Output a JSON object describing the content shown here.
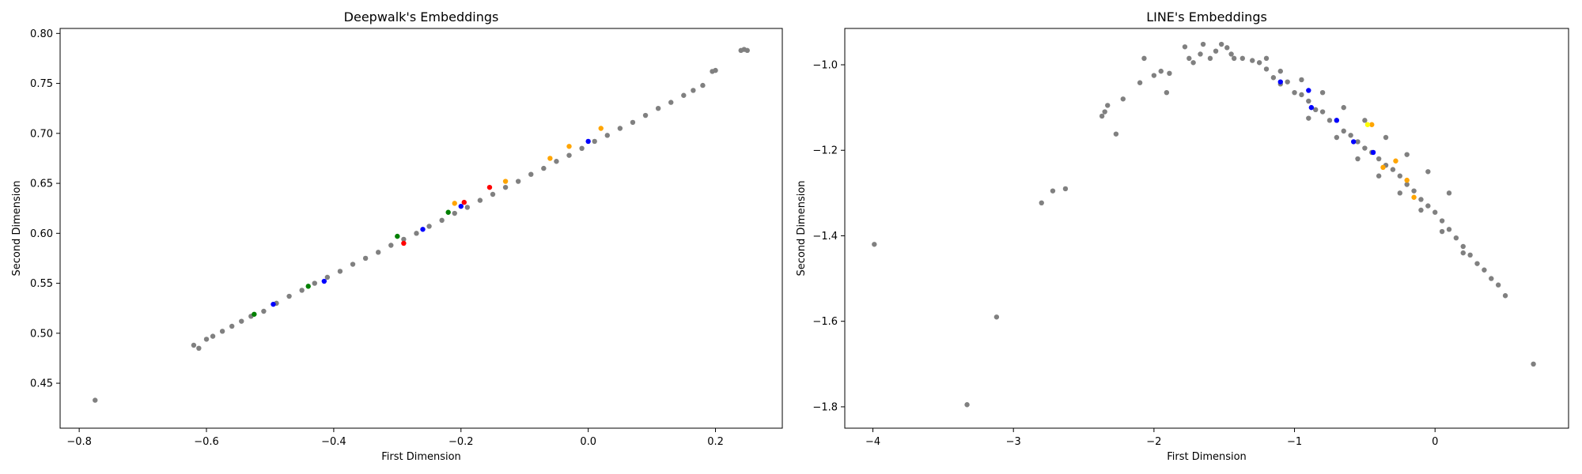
{
  "chart_data": [
    {
      "type": "scatter",
      "title": "Deepwalk's Embeddings",
      "xlabel": "First Dimension",
      "ylabel": "Second Dimension",
      "xlim": [
        -0.83,
        0.305
      ],
      "ylim": [
        0.405,
        0.805
      ],
      "xticks": [
        "−0.8",
        "−0.6",
        "−0.4",
        "−0.2",
        "0.0",
        "0.2"
      ],
      "xtick_values": [
        -0.8,
        -0.6,
        -0.4,
        -0.2,
        0.0,
        0.2
      ],
      "yticks": [
        "0.45",
        "0.50",
        "0.55",
        "0.60",
        "0.65",
        "0.70",
        "0.75",
        "0.80"
      ],
      "ytick_values": [
        0.45,
        0.5,
        0.55,
        0.6,
        0.65,
        0.7,
        0.75,
        0.8
      ],
      "grid": false,
      "series": [
        {
          "color": "#808080",
          "points": [
            [
              -0.775,
              0.433
            ],
            [
              -0.62,
              0.488
            ],
            [
              -0.612,
              0.485
            ],
            [
              -0.6,
              0.494
            ],
            [
              -0.59,
              0.497
            ],
            [
              -0.575,
              0.502
            ],
            [
              -0.56,
              0.507
            ],
            [
              -0.545,
              0.512
            ],
            [
              -0.53,
              0.517
            ],
            [
              -0.51,
              0.522
            ],
            [
              -0.49,
              0.53
            ],
            [
              -0.47,
              0.537
            ],
            [
              -0.45,
              0.543
            ],
            [
              -0.43,
              0.55
            ],
            [
              -0.41,
              0.556
            ],
            [
              -0.39,
              0.562
            ],
            [
              -0.37,
              0.569
            ],
            [
              -0.35,
              0.575
            ],
            [
              -0.33,
              0.581
            ],
            [
              -0.31,
              0.588
            ],
            [
              -0.29,
              0.594
            ],
            [
              -0.27,
              0.6
            ],
            [
              -0.25,
              0.607
            ],
            [
              -0.23,
              0.613
            ],
            [
              -0.21,
              0.62
            ],
            [
              -0.19,
              0.626
            ],
            [
              -0.17,
              0.633
            ],
            [
              -0.15,
              0.639
            ],
            [
              -0.13,
              0.646
            ],
            [
              -0.11,
              0.652
            ],
            [
              -0.09,
              0.659
            ],
            [
              -0.07,
              0.665
            ],
            [
              -0.05,
              0.672
            ],
            [
              -0.03,
              0.678
            ],
            [
              -0.01,
              0.685
            ],
            [
              0.01,
              0.692
            ],
            [
              0.03,
              0.698
            ],
            [
              0.05,
              0.705
            ],
            [
              0.07,
              0.711
            ],
            [
              0.09,
              0.718
            ],
            [
              0.11,
              0.725
            ],
            [
              0.13,
              0.731
            ],
            [
              0.15,
              0.738
            ],
            [
              0.165,
              0.743
            ],
            [
              0.18,
              0.748
            ],
            [
              0.195,
              0.762
            ],
            [
              0.2,
              0.763
            ],
            [
              0.24,
              0.783
            ],
            [
              0.245,
              0.784
            ],
            [
              0.25,
              0.783
            ]
          ]
        },
        {
          "color": "#ffa500",
          "points": [
            [
              -0.06,
              0.675
            ],
            [
              -0.03,
              0.687
            ],
            [
              0.02,
              0.705
            ],
            [
              -0.13,
              0.652
            ],
            [
              -0.21,
              0.63
            ]
          ]
        },
        {
          "color": "#0000ff",
          "points": [
            [
              -0.495,
              0.529
            ],
            [
              -0.415,
              0.552
            ],
            [
              -0.26,
              0.604
            ],
            [
              -0.2,
              0.627
            ],
            [
              0.0,
              0.692
            ]
          ]
        },
        {
          "color": "#ff0000",
          "points": [
            [
              -0.29,
              0.59
            ],
            [
              -0.155,
              0.646
            ],
            [
              -0.195,
              0.631
            ]
          ]
        },
        {
          "color": "#008000",
          "points": [
            [
              -0.525,
              0.519
            ],
            [
              -0.3,
              0.597
            ],
            [
              -0.22,
              0.621
            ],
            [
              -0.44,
              0.547
            ]
          ]
        }
      ]
    },
    {
      "type": "scatter",
      "title": "LINE's Embeddings",
      "xlabel": "First Dimension",
      "ylabel": "Second Dimension",
      "xlim": [
        -4.2,
        0.95
      ],
      "ylim": [
        -1.85,
        -0.915
      ],
      "xticks": [
        "−4",
        "−3",
        "−2",
        "−1",
        "0"
      ],
      "xtick_values": [
        -4,
        -3,
        -2,
        -1,
        0
      ],
      "yticks": [
        "−1.8",
        "−1.6",
        "−1.4",
        "−1.2",
        "−1.0"
      ],
      "ytick_values": [
        -1.8,
        -1.6,
        -1.4,
        -1.2,
        -1.0
      ],
      "grid": false,
      "series": [
        {
          "color": "#808080",
          "points": [
            [
              -3.99,
              -1.42
            ],
            [
              -3.33,
              -1.795
            ],
            [
              -3.12,
              -1.59
            ],
            [
              -2.8,
              -1.323
            ],
            [
              -2.72,
              -1.295
            ],
            [
              -2.63,
              -1.29
            ],
            [
              -2.37,
              -1.12
            ],
            [
              -2.33,
              -1.095
            ],
            [
              -2.35,
              -1.11
            ],
            [
              -2.27,
              -1.162
            ],
            [
              -2.22,
              -1.08
            ],
            [
              -2.1,
              -1.042
            ],
            [
              -2.07,
              -0.985
            ],
            [
              -2.0,
              -1.025
            ],
            [
              -1.95,
              -1.015
            ],
            [
              -1.91,
              -1.065
            ],
            [
              -1.89,
              -1.02
            ],
            [
              -1.78,
              -0.958
            ],
            [
              -1.75,
              -0.985
            ],
            [
              -1.72,
              -0.995
            ],
            [
              -1.67,
              -0.975
            ],
            [
              -1.65,
              -0.952
            ],
            [
              -1.6,
              -0.985
            ],
            [
              -1.56,
              -0.968
            ],
            [
              -1.52,
              -0.952
            ],
            [
              -1.48,
              -0.96
            ],
            [
              -1.45,
              -0.975
            ],
            [
              -1.43,
              -0.985
            ],
            [
              -1.37,
              -0.985
            ],
            [
              -1.3,
              -0.99
            ],
            [
              -1.25,
              -0.995
            ],
            [
              -1.2,
              -1.01
            ],
            [
              -1.15,
              -1.03
            ],
            [
              -1.1,
              -1.045
            ],
            [
              -1.05,
              -1.04
            ],
            [
              -1.0,
              -1.065
            ],
            [
              -0.95,
              -1.07
            ],
            [
              -0.9,
              -1.085
            ],
            [
              -0.85,
              -1.105
            ],
            [
              -0.8,
              -1.11
            ],
            [
              -0.75,
              -1.13
            ],
            [
              -0.7,
              -1.13
            ],
            [
              -0.65,
              -1.155
            ],
            [
              -0.6,
              -1.165
            ],
            [
              -0.55,
              -1.18
            ],
            [
              -0.5,
              -1.195
            ],
            [
              -0.45,
              -1.205
            ],
            [
              -0.4,
              -1.22
            ],
            [
              -0.35,
              -1.235
            ],
            [
              -0.3,
              -1.245
            ],
            [
              -0.25,
              -1.26
            ],
            [
              -0.2,
              -1.28
            ],
            [
              -0.15,
              -1.295
            ],
            [
              -0.1,
              -1.315
            ],
            [
              -0.05,
              -1.33
            ],
            [
              0.0,
              -1.345
            ],
            [
              0.05,
              -1.365
            ],
            [
              0.1,
              -1.385
            ],
            [
              0.15,
              -1.405
            ],
            [
              0.2,
              -1.425
            ],
            [
              0.25,
              -1.445
            ],
            [
              0.3,
              -1.465
            ],
            [
              0.35,
              -1.48
            ],
            [
              0.4,
              -1.5
            ],
            [
              0.45,
              -1.515
            ],
            [
              0.5,
              -1.54
            ],
            [
              0.7,
              -1.7
            ],
            [
              -1.2,
              -0.985
            ],
            [
              -1.1,
              -1.015
            ],
            [
              -0.95,
              -1.035
            ],
            [
              -0.8,
              -1.065
            ],
            [
              -0.65,
              -1.1
            ],
            [
              -0.5,
              -1.13
            ],
            [
              -0.35,
              -1.17
            ],
            [
              -0.2,
              -1.21
            ],
            [
              -0.05,
              -1.25
            ],
            [
              0.1,
              -1.3
            ],
            [
              -0.9,
              -1.125
            ],
            [
              -0.7,
              -1.17
            ],
            [
              -0.55,
              -1.22
            ],
            [
              -0.4,
              -1.26
            ],
            [
              -0.25,
              -1.3
            ],
            [
              -0.1,
              -1.34
            ],
            [
              0.05,
              -1.39
            ],
            [
              0.2,
              -1.44
            ]
          ]
        },
        {
          "color": "#0000ff",
          "points": [
            [
              -1.1,
              -1.04
            ],
            [
              -0.88,
              -1.1
            ],
            [
              -0.7,
              -1.13
            ],
            [
              -0.58,
              -1.18
            ],
            [
              -0.44,
              -1.205
            ],
            [
              -0.9,
              -1.06
            ]
          ]
        },
        {
          "color": "#ffa500",
          "points": [
            [
              -0.37,
              -1.24
            ],
            [
              -0.28,
              -1.225
            ],
            [
              -0.2,
              -1.27
            ],
            [
              -0.15,
              -1.31
            ],
            [
              -0.45,
              -1.14
            ]
          ]
        },
        {
          "color": "#ffff00",
          "points": [
            [
              -0.48,
              -1.14
            ]
          ]
        }
      ]
    }
  ]
}
